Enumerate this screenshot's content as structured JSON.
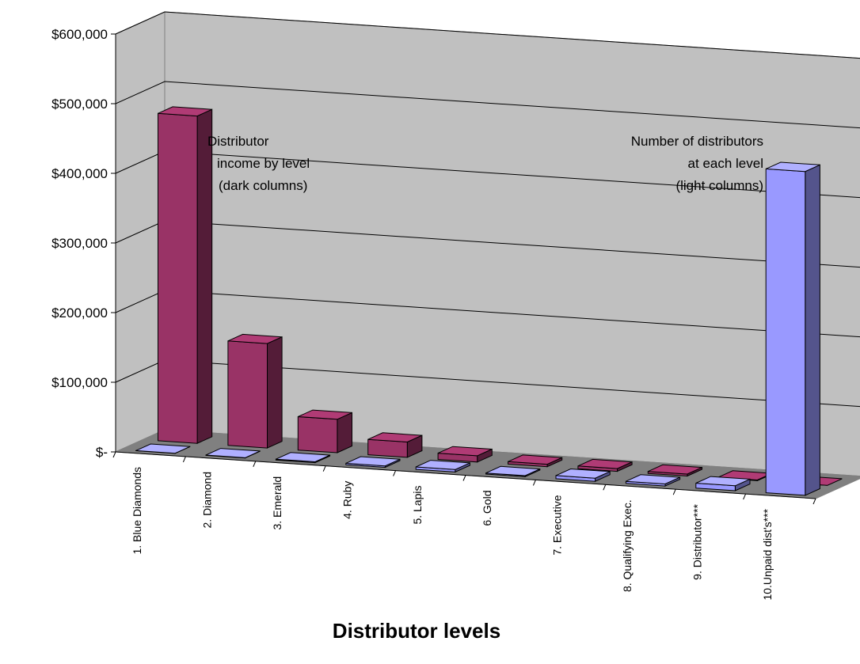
{
  "chart_data": {
    "type": "bar",
    "title": "",
    "xlabel": "Distributor levels",
    "ylabel": "",
    "ylim": [
      0,
      600000
    ],
    "yticks": [
      "$-",
      "$100,000",
      "$200,000",
      "$300,000",
      "$400,000",
      "$500,000",
      "$600,000"
    ],
    "ytick_values": [
      0,
      100000,
      200000,
      300000,
      400000,
      500000,
      600000
    ],
    "grid": true,
    "categories": [
      "1. Blue Diamonds",
      "2. Diamond",
      "3. Emerald",
      "4. Ruby",
      "5. Lapis",
      "6. Gold",
      "7. Executive",
      "8. Qualifying Exec.",
      "9. Distributor***",
      "10.Unpaid dist's***"
    ],
    "series": [
      {
        "values": [
          470000,
          150000,
          48000,
          22000,
          9000,
          3500,
          4000,
          2800,
          1000,
          0
        ],
        "color": "#993366"
      },
      {
        "values": [
          120,
          400,
          1200,
          2000,
          3500,
          1500,
          4500,
          3000,
          7000,
          465000
        ],
        "color": "#9999ff"
      }
    ],
    "annotations": {
      "dark": [
        "Distributor",
        "income by level",
        "(dark columns)"
      ],
      "light": [
        "Number of distributors",
        "at each level",
        "(light columns)"
      ]
    }
  }
}
